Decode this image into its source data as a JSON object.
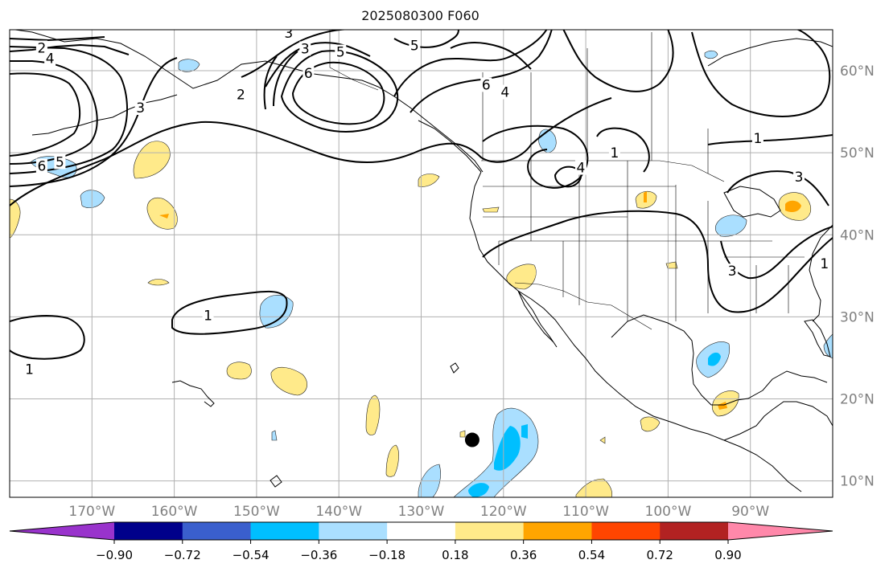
{
  "title": "2025080300 F060",
  "map": {
    "lon_range": [
      -180,
      -80
    ],
    "lat_range": [
      8,
      65
    ],
    "lon_gridlines": [
      -170,
      -160,
      -150,
      -140,
      -130,
      -120,
      -110,
      -100,
      -90
    ],
    "lat_gridlines": [
      10,
      20,
      30,
      40,
      50,
      60
    ],
    "lon_labels": [
      "170°W",
      "160°W",
      "150°W",
      "140°W",
      "130°W",
      "120°W",
      "110°W",
      "100°W",
      "90°W"
    ],
    "lat_labels": [
      "10°N",
      "20°N",
      "30°N",
      "40°N",
      "50°N",
      "60°N"
    ],
    "marker": {
      "lon": -123.8,
      "lat": 15.0,
      "name": "storm-center"
    },
    "contour_labels": [
      {
        "text": "2",
        "lon": -176.1,
        "lat": 62.8
      },
      {
        "text": "4",
        "lon": -175.1,
        "lat": 61.5
      },
      {
        "text": "3",
        "lon": -164.1,
        "lat": 55.5
      },
      {
        "text": "6",
        "lon": -176.1,
        "lat": 48.4
      },
      {
        "text": "5",
        "lon": -173.9,
        "lat": 48.9
      },
      {
        "text": "3",
        "lon": -146.1,
        "lat": 64.6
      },
      {
        "text": "3",
        "lon": -144.1,
        "lat": 62.7
      },
      {
        "text": "5",
        "lon": -139.8,
        "lat": 62.3
      },
      {
        "text": "6",
        "lon": -143.7,
        "lat": 59.7
      },
      {
        "text": "2",
        "lon": -151.9,
        "lat": 57.1
      },
      {
        "text": "5",
        "lon": -130.8,
        "lat": 63.1
      },
      {
        "text": "6",
        "lon": -122.1,
        "lat": 58.3
      },
      {
        "text": "4",
        "lon": -119.8,
        "lat": 57.4
      },
      {
        "text": "4",
        "lon": -110.6,
        "lat": 48.2
      },
      {
        "text": "1",
        "lon": -106.5,
        "lat": 50.0
      },
      {
        "text": "1",
        "lon": -89.1,
        "lat": 51.8
      },
      {
        "text": "3",
        "lon": -84.1,
        "lat": 47.1
      },
      {
        "text": "3",
        "lon": -92.2,
        "lat": 35.6
      },
      {
        "text": "1",
        "lon": -81.0,
        "lat": 36.5
      },
      {
        "text": "1",
        "lon": -155.9,
        "lat": 30.2
      },
      {
        "text": "1",
        "lon": -177.6,
        "lat": 23.6
      }
    ]
  },
  "colorbar": {
    "ticks": [
      "−0.90",
      "−0.72",
      "−0.54",
      "−0.36",
      "−0.18",
      "0.18",
      "0.36",
      "0.54",
      "0.72",
      "0.90"
    ],
    "colors": [
      "#9933cc",
      "#00008b",
      "#3a5fcd",
      "#00bfff",
      "#aadfff",
      "#ffffff",
      "#ffea8a",
      "#ffa500",
      "#ff4500",
      "#b22222",
      "#ff88aa",
      "#ff88aa"
    ]
  }
}
